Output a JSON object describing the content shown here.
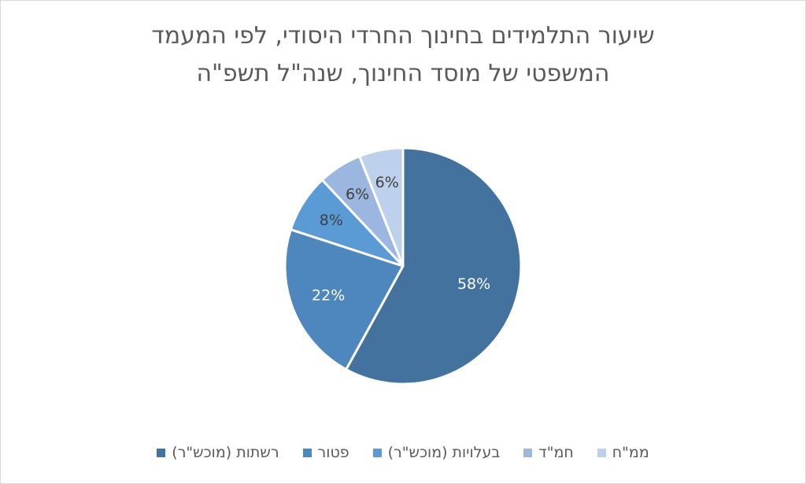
{
  "chart_data": {
    "type": "pie",
    "title": "שיעור התלמידים בחינוך החרדי היסודי, לפי המעמד המשפטי של מוסד החינוך, שנה\"ל תשפ\"ה",
    "title_lines": [
      "שיעור התלמידים בחינוך החרדי היסודי, לפי המעמד",
      "המשפטי של מוסד החינוך, שנה\"ל תשפ\"ה"
    ],
    "categories": [
      "רשתות (מוכש\"ר)",
      "פטור",
      "בעלויות (מוכש\"ר)",
      "חמ\"ד",
      "ממ\"ח"
    ],
    "values": [
      58,
      22,
      8,
      6,
      6
    ],
    "data_labels": [
      "58%",
      "22%",
      "8%",
      "6%",
      "6%"
    ],
    "colors": [
      "#44729f",
      "#4e86be",
      "#5b9bd5",
      "#9bb7df",
      "#bdd0ec"
    ],
    "label_colors": [
      "#ffffff",
      "#ffffff",
      "#404040",
      "#404040",
      "#404040"
    ],
    "legend_position": "bottom",
    "start_angle_deg": 0,
    "direction": "clockwise"
  }
}
